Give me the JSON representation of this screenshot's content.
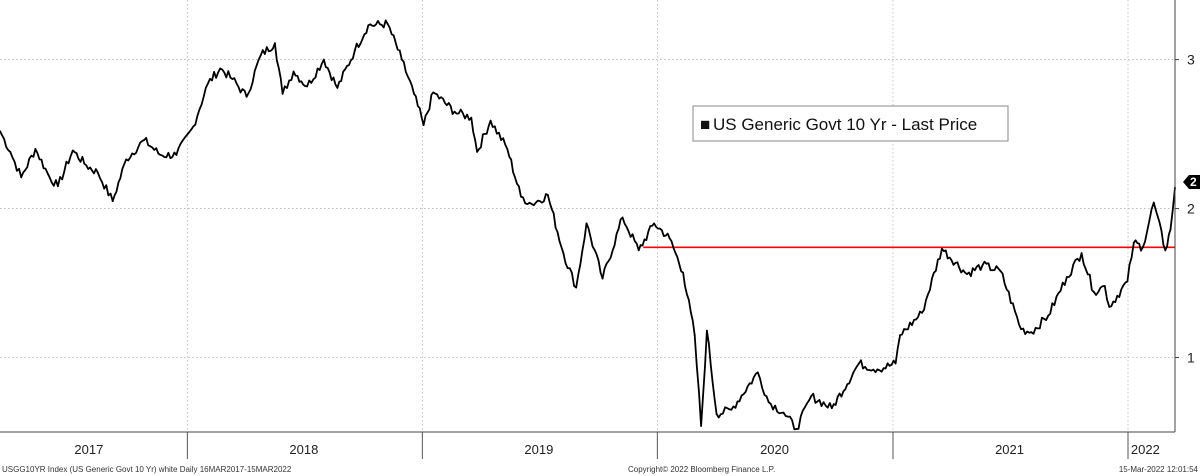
{
  "chart_data": {
    "type": "line",
    "title": "",
    "xlabel": "",
    "ylabel": "",
    "x_range": [
      "2017-03-16",
      "2022-03-15"
    ],
    "ylim": [
      0.5,
      3.4
    ],
    "y_ticks": [
      "1",
      "2",
      "3"
    ],
    "y_tick_values": [
      1,
      2,
      3
    ],
    "year_labels": [
      "2017",
      "2018",
      "2019",
      "2020",
      "2021",
      "2022"
    ],
    "year_label_dates": [
      "2017-08-01",
      "2018-07-01",
      "2019-07-01",
      "2020-07-01",
      "2021-07-01",
      "2022-01-28"
    ],
    "year_boundaries": [
      "2018-01-01",
      "2019-01-01",
      "2020-01-01",
      "2021-01-01",
      "2022-01-01"
    ],
    "grid": true,
    "legend": {
      "position": "top-center",
      "marker": "■",
      "label": "US Generic Govt 10 Yr - Last Price"
    },
    "current_value_label": "2",
    "series": [
      {
        "name": "US Generic Govt 10 Yr - Last Price",
        "color": "#000000",
        "points": [
          [
            "2017-03-16",
            2.52
          ],
          [
            "2017-04-01",
            2.38
          ],
          [
            "2017-04-18",
            2.21
          ],
          [
            "2017-05-10",
            2.4
          ],
          [
            "2017-06-01",
            2.21
          ],
          [
            "2017-06-14",
            2.15
          ],
          [
            "2017-07-07",
            2.39
          ],
          [
            "2017-07-28",
            2.29
          ],
          [
            "2017-08-15",
            2.24
          ],
          [
            "2017-09-07",
            2.05
          ],
          [
            "2017-09-28",
            2.33
          ],
          [
            "2017-10-26",
            2.46
          ],
          [
            "2017-11-20",
            2.36
          ],
          [
            "2017-12-15",
            2.36
          ],
          [
            "2018-01-10",
            2.55
          ],
          [
            "2018-02-02",
            2.84
          ],
          [
            "2018-02-21",
            2.94
          ],
          [
            "2018-03-12",
            2.87
          ],
          [
            "2018-04-03",
            2.75
          ],
          [
            "2018-04-25",
            3.03
          ],
          [
            "2018-05-17",
            3.11
          ],
          [
            "2018-05-29",
            2.77
          ],
          [
            "2018-06-15",
            2.92
          ],
          [
            "2018-07-06",
            2.82
          ],
          [
            "2018-08-01",
            3.0
          ],
          [
            "2018-08-22",
            2.81
          ],
          [
            "2018-09-18",
            3.06
          ],
          [
            "2018-10-09",
            3.23
          ],
          [
            "2018-11-08",
            3.24
          ],
          [
            "2018-11-30",
            3.0
          ],
          [
            "2018-12-19",
            2.77
          ],
          [
            "2019-01-03",
            2.56
          ],
          [
            "2019-01-18",
            2.78
          ],
          [
            "2019-02-20",
            2.65
          ],
          [
            "2019-03-18",
            2.61
          ],
          [
            "2019-03-27",
            2.38
          ],
          [
            "2019-04-17",
            2.59
          ],
          [
            "2019-05-13",
            2.4
          ],
          [
            "2019-06-03",
            2.08
          ],
          [
            "2019-06-20",
            2.03
          ],
          [
            "2019-07-15",
            2.09
          ],
          [
            "2019-08-08",
            1.7
          ],
          [
            "2019-08-28",
            1.47
          ],
          [
            "2019-09-13",
            1.9
          ],
          [
            "2019-10-08",
            1.53
          ],
          [
            "2019-11-08",
            1.94
          ],
          [
            "2019-12-03",
            1.72
          ],
          [
            "2019-12-27",
            1.9
          ],
          [
            "2020-01-20",
            1.8
          ],
          [
            "2020-02-10",
            1.57
          ],
          [
            "2020-02-28",
            1.15
          ],
          [
            "2020-03-09",
            0.54
          ],
          [
            "2020-03-18",
            1.18
          ],
          [
            "2020-04-02",
            0.62
          ],
          [
            "2020-04-25",
            0.65
          ],
          [
            "2020-06-05",
            0.9
          ],
          [
            "2020-06-22",
            0.7
          ],
          [
            "2020-07-15",
            0.63
          ],
          [
            "2020-08-04",
            0.52
          ],
          [
            "2020-08-27",
            0.74
          ],
          [
            "2020-09-28",
            0.66
          ],
          [
            "2020-11-09",
            0.96
          ],
          [
            "2020-12-08",
            0.92
          ],
          [
            "2021-01-05",
            0.96
          ],
          [
            "2021-01-12",
            1.15
          ],
          [
            "2021-02-15",
            1.3
          ],
          [
            "2021-03-18",
            1.73
          ],
          [
            "2021-04-26",
            1.56
          ],
          [
            "2021-05-20",
            1.62
          ],
          [
            "2021-06-17",
            1.58
          ],
          [
            "2021-07-19",
            1.19
          ],
          [
            "2021-08-04",
            1.17
          ],
          [
            "2021-08-30",
            1.28
          ],
          [
            "2021-09-28",
            1.54
          ],
          [
            "2021-10-21",
            1.7
          ],
          [
            "2021-11-09",
            1.44
          ],
          [
            "2021-11-26",
            1.48
          ],
          [
            "2021-12-03",
            1.34
          ],
          [
            "2021-12-31",
            1.51
          ],
          [
            "2022-01-10",
            1.77
          ],
          [
            "2022-01-24",
            1.74
          ],
          [
            "2022-02-10",
            2.04
          ],
          [
            "2022-02-28",
            1.72
          ],
          [
            "2022-03-08",
            1.86
          ],
          [
            "2022-03-15",
            2.14
          ]
        ]
      }
    ],
    "reference_line": {
      "value": 1.74,
      "start": "2019-12-10",
      "end": "2022-03-15",
      "color": "#ff0000"
    }
  },
  "footer": {
    "left": "USGG10YR Index (US Generic Govt 10 Yr) white  Daily 16MAR2017-15MAR2022",
    "center": "Copyright© 2022 Bloomberg Finance L.P.",
    "right": "15-Mar-2022 12:01:54"
  }
}
